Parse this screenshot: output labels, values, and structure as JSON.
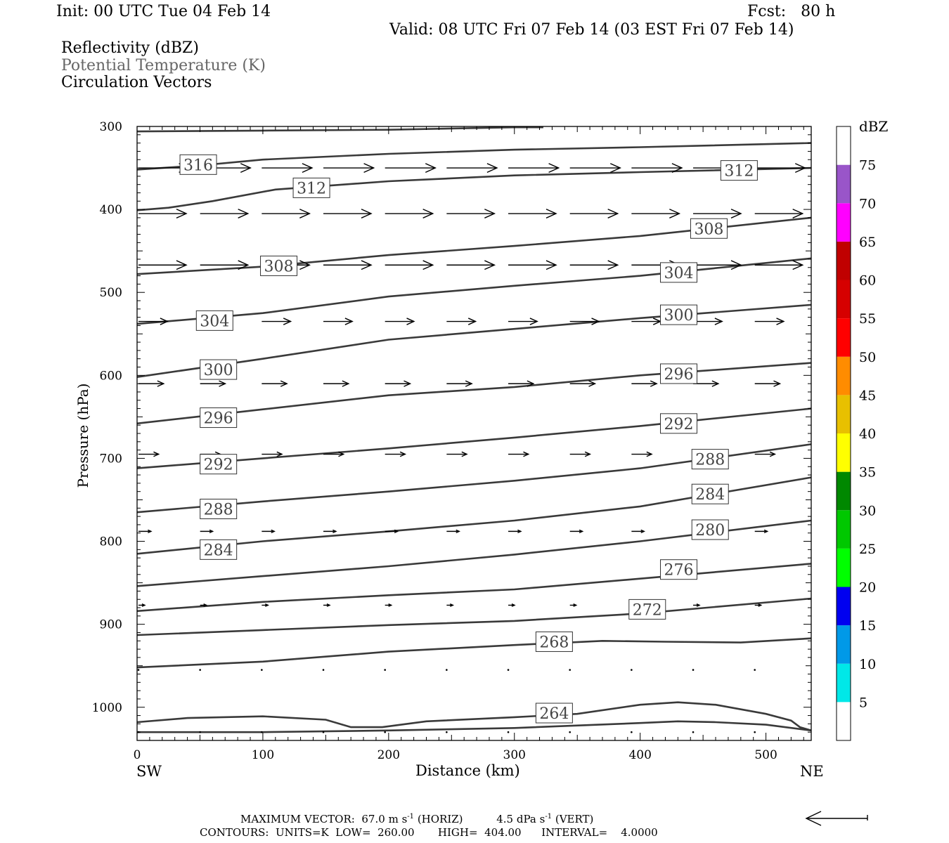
{
  "header": {
    "init": "Init: 00 UTC Tue 04 Feb 14",
    "fcst": "Fcst:   80 h",
    "valid": "Valid: 08 UTC Fri 07 Feb 14 (03 EST Fri 07 Feb 14)",
    "field1": "Reflectivity (dBZ)",
    "field2": "Potential Temperature (K)",
    "field3": "Circulation Vectors"
  },
  "footer": {
    "max_vector_label": "MAXIMUM VECTOR:",
    "horiz_value": "67.0",
    "horiz_unit": "m s",
    "horiz_tag": "(HORIZ)",
    "vert_value": "4.5",
    "vert_unit": "dPa s",
    "vert_tag": "(VERT)",
    "exponent": "-1",
    "contours_line": "CONTOURS:  UNITS=K  LOW=  260.00       HIGH=  404.00      INTERVAL=    4.0000"
  },
  "chart_data": {
    "type": "line",
    "subtype": "vertical cross-section contour plot",
    "xlabel": "Distance (km)",
    "ylabel": "Pressure (hPa)",
    "xlim": [
      0,
      536
    ],
    "ylim": [
      1040,
      300
    ],
    "x_ticks": [
      0,
      100,
      200,
      300,
      400,
      500
    ],
    "y_ticks": [
      300,
      400,
      500,
      600,
      700,
      800,
      900,
      1000
    ],
    "x_end_labels": {
      "left": "SW",
      "right": "NE"
    },
    "line_color": "#3a3a3a",
    "contours": [
      {
        "label": "264",
        "points": [
          [
            0,
            1018
          ],
          [
            40,
            1013
          ],
          [
            100,
            1011
          ],
          [
            150,
            1015
          ],
          [
            170,
            1024
          ],
          [
            195,
            1024
          ],
          [
            230,
            1017
          ],
          [
            300,
            1012
          ],
          [
            350,
            1008
          ],
          [
            400,
            997
          ],
          [
            430,
            994
          ],
          [
            460,
            997
          ],
          [
            500,
            1008
          ],
          [
            520,
            1016
          ],
          [
            527,
            1024
          ],
          [
            536,
            1028
          ]
        ],
        "label_x": 316
      },
      {
        "label": "264",
        "points": [
          [
            0,
            1030
          ],
          [
            100,
            1030
          ],
          [
            200,
            1028
          ],
          [
            300,
            1025
          ],
          [
            400,
            1019
          ],
          [
            430,
            1017
          ],
          [
            460,
            1018
          ],
          [
            500,
            1021
          ],
          [
            536,
            1028
          ]
        ]
      },
      {
        "label": "268",
        "points": [
          [
            0,
            952
          ],
          [
            100,
            945
          ],
          [
            200,
            933
          ],
          [
            300,
            925
          ],
          [
            370,
            920
          ],
          [
            420,
            921
          ],
          [
            480,
            922
          ],
          [
            536,
            917
          ]
        ],
        "label_x": 316
      },
      {
        "label": "272",
        "points": [
          [
            0,
            913
          ],
          [
            100,
            907
          ],
          [
            200,
            901
          ],
          [
            300,
            896
          ],
          [
            400,
            887
          ],
          [
            536,
            869
          ]
        ],
        "label_x": 390
      },
      {
        "label": "276",
        "points": [
          [
            0,
            884
          ],
          [
            100,
            873
          ],
          [
            200,
            865
          ],
          [
            300,
            858
          ],
          [
            400,
            845
          ],
          [
            536,
            827
          ]
        ],
        "label_x": 415
      },
      {
        "label": "",
        "points": [
          [
            0,
            854
          ],
          [
            100,
            842
          ],
          [
            200,
            830
          ],
          [
            300,
            816
          ],
          [
            400,
            800
          ],
          [
            536,
            775
          ]
        ]
      },
      {
        "label": "280",
        "points": [
          [
            0,
            815
          ],
          [
            100,
            800
          ],
          [
            200,
            788
          ],
          [
            300,
            775
          ],
          [
            400,
            758
          ],
          [
            536,
            723
          ]
        ],
        "label_x": 440
      },
      {
        "label": "284",
        "points": [
          [
            0,
            765
          ],
          [
            100,
            752
          ],
          [
            200,
            740
          ],
          [
            300,
            727
          ],
          [
            400,
            712
          ],
          [
            536,
            683
          ]
        ],
        "label_x": 440
      },
      {
        "label": "288",
        "points": [
          [
            0,
            712
          ],
          [
            100,
            700
          ],
          [
            200,
            688
          ],
          [
            300,
            675
          ],
          [
            400,
            661
          ],
          [
            536,
            640
          ]
        ],
        "label_x": 440
      },
      {
        "label": "292",
        "points": [
          [
            0,
            658
          ],
          [
            100,
            641
          ],
          [
            200,
            624
          ],
          [
            300,
            614
          ],
          [
            400,
            600
          ],
          [
            536,
            585
          ]
        ],
        "label_x": 415
      },
      {
        "label": "296",
        "points": [
          [
            0,
            602
          ],
          [
            100,
            580
          ],
          [
            200,
            557
          ],
          [
            300,
            544
          ],
          [
            400,
            531
          ],
          [
            536,
            515
          ]
        ],
        "label_x": 415
      },
      {
        "label": "300",
        "points": [
          [
            0,
            538
          ],
          [
            100,
            525
          ],
          [
            200,
            505
          ],
          [
            300,
            492
          ],
          [
            400,
            480
          ],
          [
            536,
            459
          ]
        ],
        "label_x": 415
      },
      {
        "label": "304",
        "points": [
          [
            0,
            478
          ],
          [
            100,
            469
          ],
          [
            200,
            455
          ],
          [
            300,
            444
          ],
          [
            400,
            432
          ],
          [
            536,
            410
          ]
        ],
        "label_x": 440
      },
      {
        "label": "308",
        "points": [
          [
            0,
            401
          ],
          [
            25,
            398
          ],
          [
            60,
            390
          ],
          [
            110,
            376
          ],
          [
            200,
            366
          ],
          [
            300,
            359
          ],
          [
            400,
            355
          ],
          [
            536,
            350
          ]
        ],
        "label_x": 450
      },
      {
        "label": "312",
        "points": [
          [
            0,
            352
          ],
          [
            50,
            347
          ],
          [
            100,
            340
          ],
          [
            200,
            333
          ],
          [
            300,
            328
          ],
          [
            400,
            325
          ],
          [
            536,
            320
          ]
        ]
      },
      {
        "label": "316",
        "points": [
          [
            0,
            306
          ],
          [
            100,
            305
          ],
          [
            200,
            304
          ],
          [
            300,
            301
          ],
          [
            323,
            301
          ]
        ],
        "label_x": 24
      }
    ],
    "contour_labels": [
      {
        "text": "316",
        "x": 33,
        "p": 346
      },
      {
        "text": "312",
        "x": 123,
        "p": 374
      },
      {
        "text": "312",
        "x": 463,
        "p": 353
      },
      {
        "text": "308",
        "x": 97,
        "p": 468
      },
      {
        "text": "308",
        "x": 439,
        "p": 423
      },
      {
        "text": "304",
        "x": 46,
        "p": 534
      },
      {
        "text": "304",
        "x": 415,
        "p": 476
      },
      {
        "text": "300",
        "x": 49,
        "p": 593
      },
      {
        "text": "300",
        "x": 415,
        "p": 527
      },
      {
        "text": "296",
        "x": 49,
        "p": 651
      },
      {
        "text": "296",
        "x": 415,
        "p": 598
      },
      {
        "text": "292",
        "x": 49,
        "p": 707
      },
      {
        "text": "292",
        "x": 415,
        "p": 658
      },
      {
        "text": "288",
        "x": 49,
        "p": 761
      },
      {
        "text": "288",
        "x": 440,
        "p": 701
      },
      {
        "text": "284",
        "x": 49,
        "p": 810
      },
      {
        "text": "284",
        "x": 440,
        "p": 743
      },
      {
        "text": "280",
        "x": 440,
        "p": 786
      },
      {
        "text": "276",
        "x": 415,
        "p": 834
      },
      {
        "text": "272",
        "x": 390,
        "p": 882
      },
      {
        "text": "268",
        "x": 316,
        "p": 921
      },
      {
        "text": "264",
        "x": 316,
        "p": 1007
      }
    ],
    "vector_rows": [
      {
        "p": 350,
        "u_km": 40
      },
      {
        "p": 405,
        "u_km": 38
      },
      {
        "p": 467,
        "u_km": 38
      },
      {
        "p": 535,
        "u_km": 23
      },
      {
        "p": 610,
        "u_km": 20
      },
      {
        "p": 695,
        "u_km": 16
      },
      {
        "p": 788,
        "u_km": 10
      },
      {
        "p": 877,
        "u_km": 5
      },
      {
        "p": 955,
        "u_km": 1
      },
      {
        "p": 1030,
        "u_km": 1
      }
    ],
    "vector_x_positions": [
      0,
      49,
      98,
      147,
      196,
      245,
      294,
      343,
      392,
      441,
      490
    ],
    "colorbar": {
      "unit": "dBZ",
      "levels": [
        5,
        10,
        15,
        20,
        25,
        30,
        35,
        40,
        45,
        50,
        55,
        60,
        65,
        70,
        75
      ],
      "colors": [
        "#ffffff",
        "#00e8e8",
        "#0099e8",
        "#0000f0",
        "#00ff00",
        "#00c800",
        "#008800",
        "#ffff00",
        "#e8c000",
        "#ff8c00",
        "#ff0000",
        "#d60000",
        "#c00000",
        "#ff00ff",
        "#9955c9",
        "#ffffff"
      ]
    }
  }
}
